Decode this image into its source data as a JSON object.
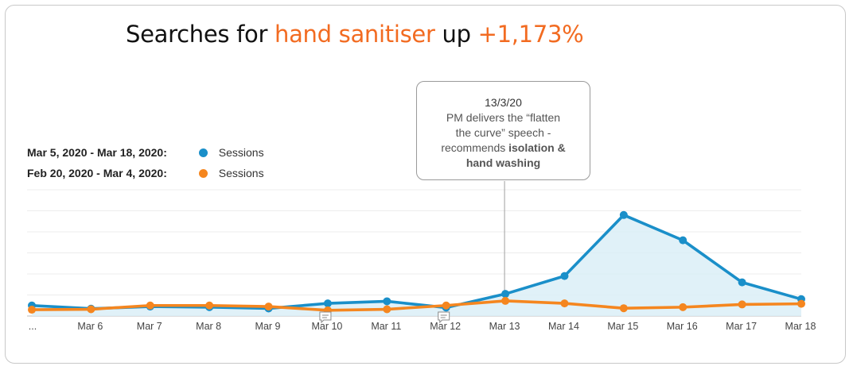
{
  "headline": {
    "prefix": "Searches for ",
    "highlight": "hand sanitiser",
    "middle": " up ",
    "change": "+1,173%"
  },
  "colors": {
    "accent": "#f26b21",
    "series_current": "#1a8fc9",
    "series_previous": "#f5861f",
    "area_fill": "#dbeef7"
  },
  "legend": [
    {
      "range": "Mar 5, 2020 - Mar 18, 2020:",
      "series": "Sessions",
      "color": "#1a8fc9"
    },
    {
      "range": "Feb 20, 2020 - Mar 4, 2020:",
      "series": "Sessions",
      "color": "#f5861f"
    }
  ],
  "callout": {
    "date": "13/3/20",
    "line1": "PM delivers the “flatten",
    "line2": "the curve” speech -",
    "line3_prefix": "recommends ",
    "line3_bold": "isolation &",
    "line4_bold": "hand washing",
    "anchor_category": "Mar 13"
  },
  "chart_data": {
    "type": "area",
    "categories": [
      "...",
      "Mar 6",
      "Mar 7",
      "Mar 8",
      "Mar 9",
      "Mar 10",
      "Mar 11",
      "Mar 12",
      "Mar 13",
      "Mar 14",
      "Mar 15",
      "Mar 16",
      "Mar 17",
      "Mar 18"
    ],
    "series": [
      {
        "name": "Sessions",
        "period": "Mar 5, 2020 - Mar 18, 2020",
        "color": "#1a8fc9",
        "filled": true,
        "values": [
          5.0,
          3.5,
          4.5,
          4.2,
          3.6,
          6.0,
          7.0,
          4.0,
          10.5,
          19.0,
          48.0,
          36.0,
          16.0,
          8.0
        ]
      },
      {
        "name": "Sessions",
        "period": "Feb 20, 2020 - Mar 4, 2020",
        "color": "#f5861f",
        "filled": false,
        "values": [
          3.0,
          3.2,
          5.0,
          5.0,
          4.5,
          2.7,
          3.2,
          5.0,
          7.2,
          6.0,
          3.7,
          4.2,
          5.5,
          5.8
        ]
      }
    ],
    "annotation_markers": [
      "Mar 10",
      "Mar 12"
    ],
    "ylim": [
      0,
      60
    ],
    "grid": true,
    "legend_position": "top-left",
    "title": "",
    "xlabel": "",
    "ylabel": ""
  }
}
